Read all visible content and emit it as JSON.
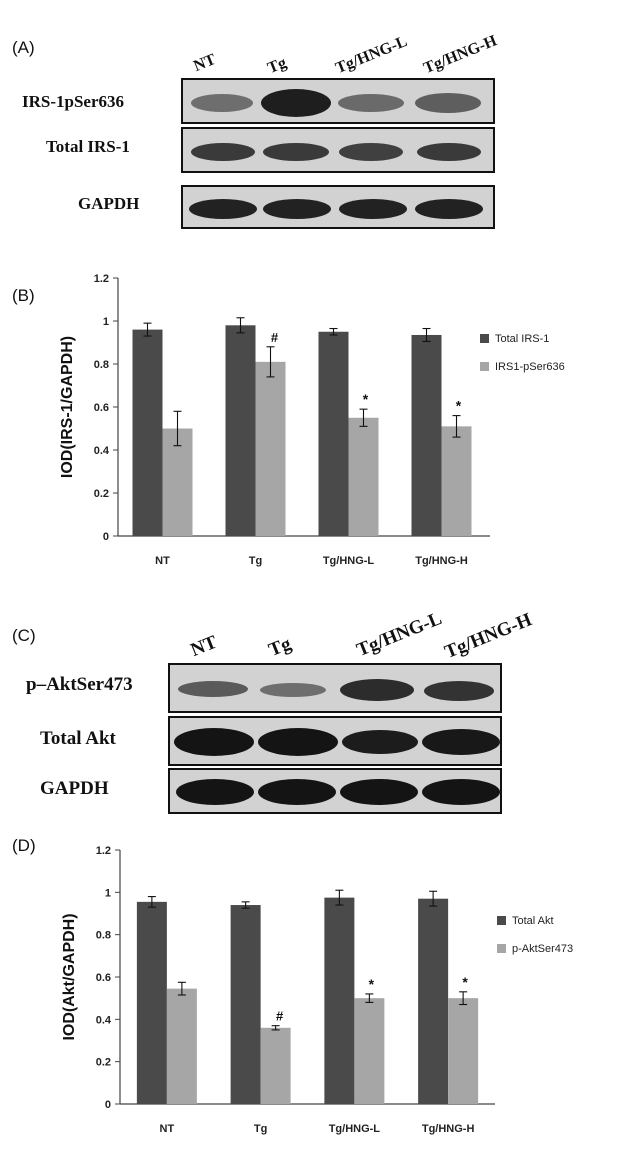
{
  "panel_a": {
    "label": "(A)",
    "lanes": [
      "NT",
      "Tg",
      "Tg/HNG-L",
      "Tg/HNG-H"
    ],
    "rows": [
      {
        "label": "IRS-1pSer636"
      },
      {
        "label": "Total  IRS-1"
      },
      {
        "label": "GAPDH"
      }
    ]
  },
  "panel_b": {
    "label": "(B)"
  },
  "panel_c": {
    "label": "(C)",
    "lanes": [
      "NT",
      "Tg",
      "Tg/HNG-L",
      "Tg/HNG-H"
    ],
    "rows": [
      {
        "label": "p–AktSer473"
      },
      {
        "label": "Total Akt"
      },
      {
        "label": "GAPDH"
      }
    ]
  },
  "panel_d": {
    "label": "(D)"
  },
  "chart_data": [
    {
      "type": "bar",
      "title": "",
      "xlabel": "",
      "ylabel": "IOD(IRS-1/GAPDH)",
      "ylim": [
        0,
        1.2
      ],
      "yticks": [
        "0",
        "0.2",
        "0.4",
        "0.6",
        "0.8",
        "1",
        "1.2"
      ],
      "grid": false,
      "legend": "right",
      "categories": [
        "NT",
        "Tg",
        "Tg/HNG-L",
        "Tg/HNG-H"
      ],
      "series": [
        {
          "name": "Total IRS-1",
          "color": "#4a4a4a",
          "values": [
            0.96,
            0.98,
            0.95,
            0.935
          ],
          "errors": [
            0.03,
            0.035,
            0.015,
            0.03
          ],
          "marks": [
            "",
            "",
            "",
            ""
          ]
        },
        {
          "name": "IRS1-pSer636",
          "color": "#a6a6a6",
          "values": [
            0.5,
            0.81,
            0.55,
            0.51
          ],
          "errors": [
            0.08,
            0.07,
            0.04,
            0.05
          ],
          "marks": [
            "",
            "#",
            "*",
            "*"
          ]
        }
      ]
    },
    {
      "type": "bar",
      "title": "",
      "xlabel": "",
      "ylabel": "IOD(Akt/GAPDH)",
      "ylim": [
        0,
        1.2
      ],
      "yticks": [
        "0",
        "0.2",
        "0.4",
        "0.6",
        "0.8",
        "1",
        "1.2"
      ],
      "grid": false,
      "legend": "right",
      "categories": [
        "NT",
        "Tg",
        "Tg/HNG-L",
        "Tg/HNG-H"
      ],
      "series": [
        {
          "name": "Total Akt",
          "color": "#4a4a4a",
          "values": [
            0.955,
            0.94,
            0.975,
            0.97
          ],
          "errors": [
            0.025,
            0.015,
            0.035,
            0.035
          ],
          "marks": [
            "",
            "",
            "",
            ""
          ]
        },
        {
          "name": "p-AktSer473",
          "color": "#a6a6a6",
          "values": [
            0.545,
            0.36,
            0.5,
            0.5
          ],
          "errors": [
            0.03,
            0.01,
            0.02,
            0.03
          ],
          "marks": [
            "",
            "#",
            "*",
            "*"
          ]
        }
      ]
    }
  ]
}
